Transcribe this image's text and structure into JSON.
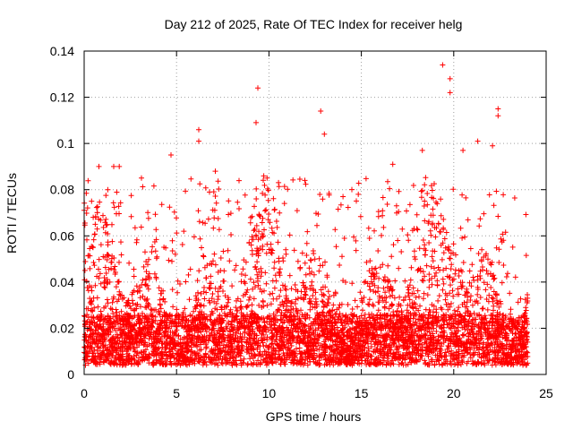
{
  "chart_data": {
    "type": "scatter",
    "title": "Day 212 of 2025, Rate Of TEC Index for receiver helg",
    "xlabel": "GPS time / hours",
    "ylabel": "ROTI / TECUs",
    "xlim": [
      0,
      25
    ],
    "ylim": [
      0,
      0.14
    ],
    "x_ticks": [
      0,
      5,
      10,
      15,
      20,
      25
    ],
    "x_tick_labels": [
      "0",
      "5",
      "10",
      "15",
      "20",
      "25"
    ],
    "y_ticks": [
      0,
      0.02,
      0.04,
      0.06,
      0.08,
      0.1,
      0.12,
      0.14
    ],
    "y_tick_labels": [
      "0",
      "0.02",
      "0.04",
      "0.06",
      "0.08",
      "0.1",
      "0.12",
      "0.14"
    ],
    "grid": true,
    "marker": "+",
    "marker_color": "#ff0000",
    "data_x_range": [
      0,
      24
    ],
    "notable_points": [
      {
        "x": 0.4,
        "y": 0.075
      },
      {
        "x": 0.8,
        "y": 0.09
      },
      {
        "x": 1.6,
        "y": 0.09
      },
      {
        "x": 1.9,
        "y": 0.09
      },
      {
        "x": 3.1,
        "y": 0.085
      },
      {
        "x": 4.7,
        "y": 0.095
      },
      {
        "x": 6.2,
        "y": 0.106
      },
      {
        "x": 6.2,
        "y": 0.101
      },
      {
        "x": 7.1,
        "y": 0.088
      },
      {
        "x": 9.3,
        "y": 0.109
      },
      {
        "x": 9.4,
        "y": 0.124
      },
      {
        "x": 9.9,
        "y": 0.085
      },
      {
        "x": 12.8,
        "y": 0.114
      },
      {
        "x": 13.0,
        "y": 0.104
      },
      {
        "x": 16.7,
        "y": 0.091
      },
      {
        "x": 18.3,
        "y": 0.097
      },
      {
        "x": 19.4,
        "y": 0.134
      },
      {
        "x": 19.8,
        "y": 0.128
      },
      {
        "x": 19.8,
        "y": 0.122
      },
      {
        "x": 20.5,
        "y": 0.097
      },
      {
        "x": 21.3,
        "y": 0.101
      },
      {
        "x": 22.1,
        "y": 0.099
      },
      {
        "x": 22.4,
        "y": 0.115
      },
      {
        "x": 22.4,
        "y": 0.112
      }
    ]
  }
}
